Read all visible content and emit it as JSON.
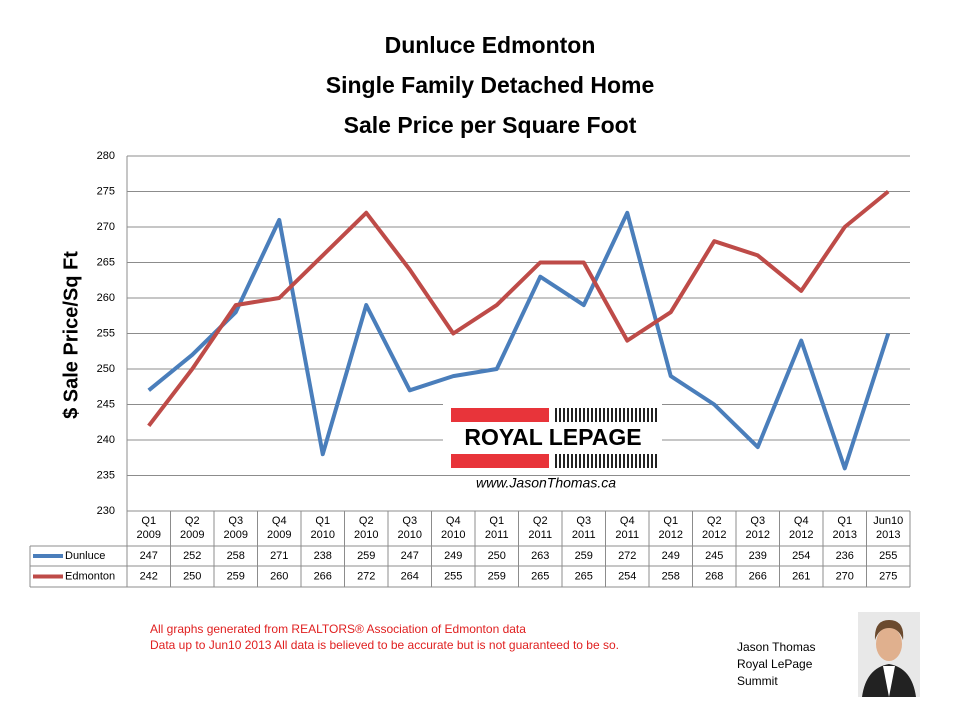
{
  "chart_data": {
    "type": "line",
    "title": [
      "Dunluce Edmonton",
      "Single Family Detached Home",
      "Sale Price per Square Foot"
    ],
    "y_label": "$ Sale Price/Sq Ft",
    "categories": [
      "Q1 2009",
      "Q2 2009",
      "Q3 2009",
      "Q4 2009",
      "Q1 2010",
      "Q2 2010",
      "Q3 2010",
      "Q4 2010",
      "Q1 2011",
      "Q2 2011",
      "Q3 2011",
      "Q4 2011",
      "Q1 2012",
      "Q2 2012",
      "Q3 2012",
      "Q4 2012",
      "Q1 2013",
      "Jun10 2013"
    ],
    "series": [
      {
        "name": "Dunluce",
        "color": "#4a7ebb",
        "values": [
          247,
          252,
          258,
          271,
          238,
          259,
          247,
          249,
          250,
          263,
          259,
          272,
          249,
          245,
          239,
          254,
          236,
          255
        ]
      },
      {
        "name": "Edmonton",
        "color": "#be4b48",
        "values": [
          242,
          250,
          259,
          260,
          266,
          272,
          264,
          255,
          259,
          265,
          265,
          254,
          258,
          268,
          266,
          261,
          270,
          275
        ]
      }
    ],
    "ylim": [
      230,
      280
    ],
    "yticks": [
      230,
      235,
      240,
      245,
      250,
      255,
      260,
      265,
      270,
      275,
      280
    ],
    "grid": true
  },
  "logo": {
    "brand": "ROYAL LEPAGE",
    "url": "www.JasonThomas.ca"
  },
  "notes": [
    "All graphs generated from REALTORS® Association of Edmonton data",
    "Data up to  Jun10 2013  All data is believed to be accurate but is not guaranteed to be so."
  ],
  "author": [
    "Jason Thomas",
    "Royal LePage",
    "Summit"
  ]
}
